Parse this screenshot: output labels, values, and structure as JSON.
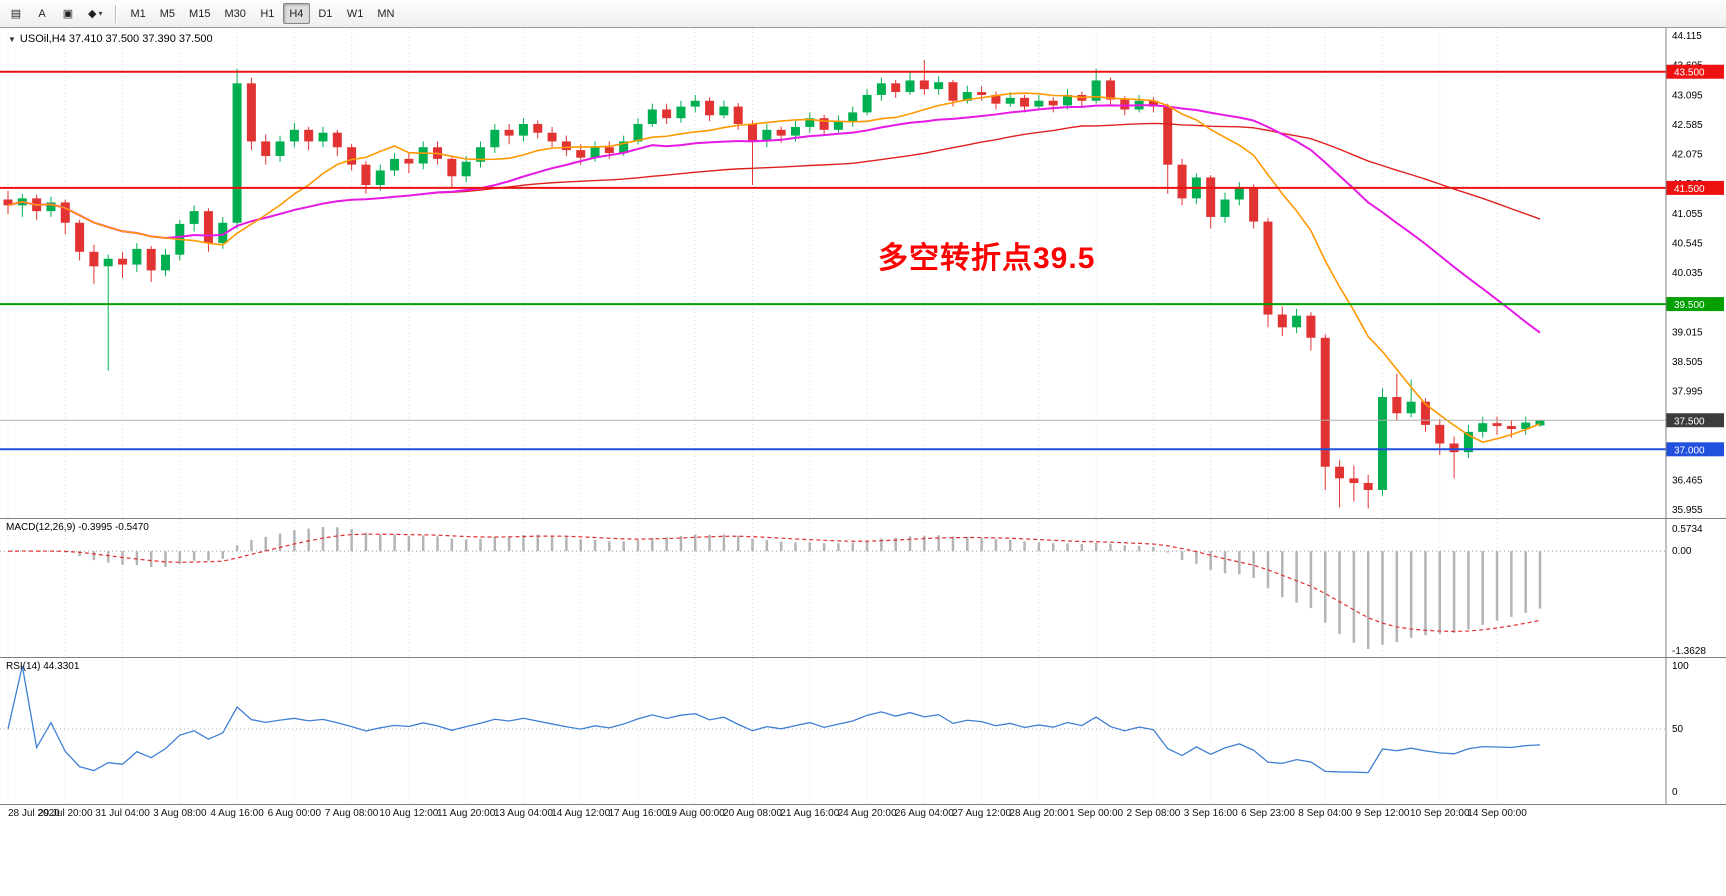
{
  "toolbar": {
    "tools": [
      {
        "name": "chart-bars-tool",
        "glyph": "▤"
      },
      {
        "name": "text-tool",
        "glyph": "A"
      },
      {
        "name": "text-label-tool",
        "glyph": "▣"
      },
      {
        "name": "shapes-tool",
        "glyph": "◆",
        "caret": "▾"
      }
    ],
    "timeframes": [
      {
        "label": "M1",
        "active": false
      },
      {
        "label": "M5",
        "active": false
      },
      {
        "label": "M15",
        "active": false
      },
      {
        "label": "M30",
        "active": false
      },
      {
        "label": "H1",
        "active": false
      },
      {
        "label": "H4",
        "active": true
      },
      {
        "label": "D1",
        "active": false
      },
      {
        "label": "W1",
        "active": false
      },
      {
        "label": "MN",
        "active": false
      }
    ]
  },
  "chart": {
    "symbol_info": "USOil,H4 37.410 37.500 37.390 37.500",
    "icons": {
      "dropdown": "▼"
    },
    "annotation": {
      "text": "多空转折点39.5",
      "color": "#ff0000"
    },
    "y_axis": {
      "max": 44.115,
      "min": 35.955,
      "step": 0.51
    },
    "levels": [
      {
        "value": 43.5,
        "label": "43.500",
        "color": "#ee1111"
      },
      {
        "value": 41.5,
        "label": "41.500",
        "color": "#ee1111"
      },
      {
        "value": 39.5,
        "label": "39.500",
        "color": "#00a000"
      },
      {
        "value": 37.0,
        "label": "37.000",
        "color": "#2050dd"
      }
    ],
    "current_price": {
      "value": 37.5,
      "label": "37.500"
    },
    "ma_lines": [
      {
        "name": "ma-slow",
        "period": 60,
        "color": "#e02020",
        "width": 1.4
      },
      {
        "name": "ma-mid",
        "period": 30,
        "color": "#e619e6",
        "width": 2
      },
      {
        "name": "ma-fast",
        "period": 12,
        "color": "#ff9800",
        "width": 1.6
      }
    ],
    "colors": {
      "bull": "#00b050",
      "bear": "#e23333",
      "grid": "#dcdcdc",
      "bid_line": "#b0b0b0",
      "bid_tag_bg": "#3c3c3c"
    }
  },
  "macd": {
    "header": "MACD(12,26,9) -0.3995 -0.5470",
    "fast": 12,
    "slow": 26,
    "signal_period": 9,
    "axis_labels": [
      "0.5734",
      "0.00",
      "-1.3628"
    ],
    "hist_color": "#b4b4b4",
    "signal_color": "#e03030"
  },
  "rsi": {
    "header": "RSI(14) 44.3301",
    "period": 14,
    "level": 50,
    "axis_labels": [
      "100",
      "50",
      "0"
    ],
    "line_color": "#3f7fd4"
  },
  "chart_data": {
    "type": "candlestick",
    "title": "USOil,H4",
    "ylim": [
      35.955,
      44.115
    ],
    "x_labels": [
      {
        "i": 0,
        "t": "28 Jul 2020"
      },
      {
        "i": 4,
        "t": "29 Jul 20:00"
      },
      {
        "i": 8,
        "t": "31 Jul 04:00"
      },
      {
        "i": 12,
        "t": "3 Aug 08:00"
      },
      {
        "i": 16,
        "t": "4 Aug 16:00"
      },
      {
        "i": 20,
        "t": "6 Aug 00:00"
      },
      {
        "i": 24,
        "t": "7 Aug 08:00"
      },
      {
        "i": 28,
        "t": "10 Aug 12:00"
      },
      {
        "i": 32,
        "t": "11 Aug 20:00"
      },
      {
        "i": 36,
        "t": "13 Aug 04:00"
      },
      {
        "i": 40,
        "t": "14 Aug 12:00"
      },
      {
        "i": 44,
        "t": "17 Aug 16:00"
      },
      {
        "i": 48,
        "t": "19 Aug 00:00"
      },
      {
        "i": 52,
        "t": "20 Aug 08:00"
      },
      {
        "i": 56,
        "t": "21 Aug 16:00"
      },
      {
        "i": 60,
        "t": "24 Aug 20:00"
      },
      {
        "i": 64,
        "t": "26 Aug 04:00"
      },
      {
        "i": 68,
        "t": "27 Aug 12:00"
      },
      {
        "i": 72,
        "t": "28 Aug 20:00"
      },
      {
        "i": 76,
        "t": "1 Sep 00:00"
      },
      {
        "i": 80,
        "t": "2 Sep 08:00"
      },
      {
        "i": 84,
        "t": "3 Sep 16:00"
      },
      {
        "i": 88,
        "t": "6 Sep 23:00"
      },
      {
        "i": 92,
        "t": "8 Sep 04:00"
      },
      {
        "i": 96,
        "t": "9 Sep 12:00"
      },
      {
        "i": 100,
        "t": "10 Sep 20:00"
      },
      {
        "i": 104,
        "t": "14 Sep 00:00"
      }
    ],
    "candles": [
      [
        41.3,
        41.45,
        41.05,
        41.2
      ],
      [
        41.2,
        41.4,
        41.0,
        41.32
      ],
      [
        41.32,
        41.38,
        40.95,
        41.1
      ],
      [
        41.1,
        41.35,
        41.0,
        41.25
      ],
      [
        41.25,
        41.3,
        40.7,
        40.9
      ],
      [
        40.9,
        40.95,
        40.25,
        40.4
      ],
      [
        40.4,
        40.52,
        39.85,
        40.15
      ],
      [
        40.15,
        40.35,
        38.35,
        40.28
      ],
      [
        40.28,
        40.4,
        39.95,
        40.18
      ],
      [
        40.18,
        40.55,
        40.05,
        40.45
      ],
      [
        40.45,
        40.5,
        39.88,
        40.08
      ],
      [
        40.08,
        40.45,
        39.98,
        40.35
      ],
      [
        40.35,
        40.95,
        40.25,
        40.88
      ],
      [
        40.88,
        41.2,
        40.75,
        41.1
      ],
      [
        41.1,
        41.15,
        40.4,
        40.55
      ],
      [
        40.55,
        41.0,
        40.45,
        40.9
      ],
      [
        40.9,
        43.55,
        40.8,
        43.3
      ],
      [
        43.3,
        43.4,
        42.15,
        42.3
      ],
      [
        42.3,
        42.42,
        41.9,
        42.05
      ],
      [
        42.05,
        42.4,
        41.95,
        42.3
      ],
      [
        42.3,
        42.62,
        42.2,
        42.5
      ],
      [
        42.5,
        42.55,
        42.15,
        42.3
      ],
      [
        42.3,
        42.55,
        42.2,
        42.45
      ],
      [
        42.45,
        42.5,
        42.05,
        42.2
      ],
      [
        42.2,
        42.26,
        41.8,
        41.9
      ],
      [
        41.9,
        41.96,
        41.4,
        41.55
      ],
      [
        41.55,
        41.9,
        41.45,
        41.8
      ],
      [
        41.8,
        42.1,
        41.7,
        42.0
      ],
      [
        42.0,
        42.1,
        41.75,
        41.92
      ],
      [
        41.92,
        42.3,
        41.82,
        42.2
      ],
      [
        42.2,
        42.3,
        41.9,
        42.0
      ],
      [
        42.0,
        42.06,
        41.5,
        41.7
      ],
      [
        41.7,
        42.05,
        41.6,
        41.95
      ],
      [
        41.95,
        42.3,
        41.85,
        42.2
      ],
      [
        42.2,
        42.6,
        42.1,
        42.5
      ],
      [
        42.5,
        42.6,
        42.25,
        42.4
      ],
      [
        42.4,
        42.7,
        42.3,
        42.6
      ],
      [
        42.6,
        42.66,
        42.35,
        42.45
      ],
      [
        42.45,
        42.55,
        42.2,
        42.3
      ],
      [
        42.3,
        42.4,
        42.05,
        42.15
      ],
      [
        42.15,
        42.25,
        41.9,
        42.02
      ],
      [
        42.02,
        42.3,
        41.95,
        42.2
      ],
      [
        42.2,
        42.3,
        42.0,
        42.1
      ],
      [
        42.1,
        42.4,
        42.05,
        42.3
      ],
      [
        42.3,
        42.7,
        42.25,
        42.6
      ],
      [
        42.6,
        42.95,
        42.55,
        42.85
      ],
      [
        42.85,
        42.95,
        42.6,
        42.7
      ],
      [
        42.7,
        43.0,
        42.62,
        42.9
      ],
      [
        42.9,
        43.1,
        42.8,
        43.0
      ],
      [
        43.0,
        43.06,
        42.65,
        42.75
      ],
      [
        42.75,
        43.0,
        42.7,
        42.9
      ],
      [
        42.9,
        42.96,
        42.5,
        42.6
      ],
      [
        42.6,
        42.66,
        41.55,
        42.3
      ],
      [
        42.3,
        42.6,
        42.2,
        42.5
      ],
      [
        42.5,
        42.56,
        42.28,
        42.4
      ],
      [
        42.4,
        42.65,
        42.3,
        42.55
      ],
      [
        42.55,
        42.8,
        42.45,
        42.7
      ],
      [
        42.7,
        42.76,
        42.4,
        42.5
      ],
      [
        42.5,
        42.75,
        42.45,
        42.65
      ],
      [
        42.65,
        42.9,
        42.55,
        42.8
      ],
      [
        42.8,
        43.2,
        42.75,
        43.1
      ],
      [
        43.1,
        43.4,
        43.0,
        43.3
      ],
      [
        43.3,
        43.36,
        43.05,
        43.15
      ],
      [
        43.15,
        43.5,
        43.1,
        43.35
      ],
      [
        43.35,
        43.7,
        43.1,
        43.2
      ],
      [
        43.2,
        43.42,
        43.1,
        43.32
      ],
      [
        43.32,
        43.36,
        42.9,
        43.0
      ],
      [
        43.0,
        43.26,
        42.95,
        43.15
      ],
      [
        43.15,
        43.25,
        43.0,
        43.1
      ],
      [
        43.1,
        43.16,
        42.85,
        42.95
      ],
      [
        42.95,
        43.15,
        42.9,
        43.05
      ],
      [
        43.05,
        43.1,
        42.8,
        42.9
      ],
      [
        42.9,
        43.1,
        42.85,
        43.0
      ],
      [
        43.0,
        43.06,
        42.8,
        42.92
      ],
      [
        42.92,
        43.2,
        42.85,
        43.1
      ],
      [
        43.1,
        43.16,
        42.9,
        43.0
      ],
      [
        43.0,
        43.55,
        42.95,
        43.35
      ],
      [
        43.35,
        43.4,
        42.9,
        43.02
      ],
      [
        43.02,
        43.08,
        42.75,
        42.85
      ],
      [
        42.85,
        43.1,
        42.8,
        43.0
      ],
      [
        43.0,
        43.06,
        42.8,
        42.9
      ],
      [
        42.9,
        42.95,
        41.4,
        41.9
      ],
      [
        41.9,
        42.0,
        41.2,
        41.32
      ],
      [
        41.32,
        41.75,
        41.22,
        41.68
      ],
      [
        41.68,
        41.72,
        40.8,
        41.0
      ],
      [
        41.0,
        41.42,
        40.9,
        41.3
      ],
      [
        41.3,
        41.6,
        41.2,
        41.5
      ],
      [
        41.5,
        41.56,
        40.8,
        40.92
      ],
      [
        40.92,
        40.98,
        39.1,
        39.32
      ],
      [
        39.32,
        39.46,
        38.95,
        39.1
      ],
      [
        39.1,
        39.42,
        39.0,
        39.3
      ],
      [
        39.3,
        39.36,
        38.7,
        38.92
      ],
      [
        38.92,
        38.98,
        36.3,
        36.7
      ],
      [
        36.7,
        36.82,
        36.0,
        36.5
      ],
      [
        36.5,
        36.72,
        36.1,
        36.42
      ],
      [
        36.42,
        36.56,
        35.98,
        36.3
      ],
      [
        36.3,
        38.05,
        36.2,
        37.9
      ],
      [
        37.9,
        38.3,
        37.5,
        37.62
      ],
      [
        37.62,
        38.2,
        37.55,
        37.82
      ],
      [
        37.82,
        37.88,
        37.3,
        37.42
      ],
      [
        37.42,
        37.52,
        36.9,
        37.1
      ],
      [
        37.1,
        37.22,
        36.5,
        36.95
      ],
      [
        36.95,
        37.42,
        36.85,
        37.3
      ],
      [
        37.3,
        37.56,
        37.2,
        37.45
      ],
      [
        37.45,
        37.56,
        37.25,
        37.4
      ],
      [
        37.4,
        37.5,
        37.2,
        37.35
      ],
      [
        37.35,
        37.56,
        37.25,
        37.46
      ],
      [
        37.41,
        37.5,
        37.39,
        37.5
      ]
    ]
  }
}
